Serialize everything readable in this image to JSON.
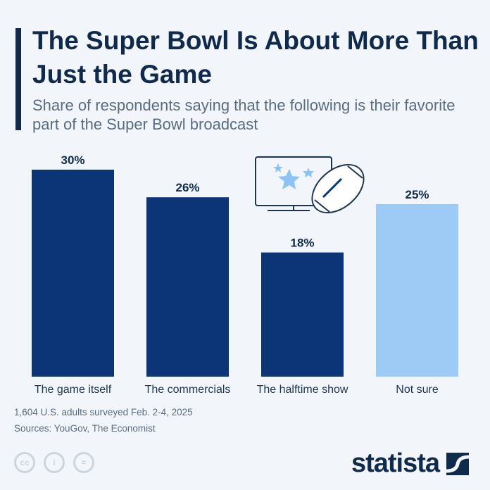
{
  "title": "The Super Bowl Is About More Than Just the Game",
  "subtitle": "Share of respondents saying that the following is their favorite part of the Super Bowl broadcast",
  "chart_data": {
    "type": "bar",
    "categories": [
      "The game itself",
      "The commercials",
      "The halftime show",
      "Not sure"
    ],
    "values": [
      30,
      26,
      18,
      25
    ],
    "data_labels": [
      "30%",
      "26%",
      "18%",
      "25%"
    ],
    "colors": [
      "#0b3577",
      "#0b3577",
      "#0b3577",
      "#9ecbf6"
    ],
    "ylim": [
      0,
      30
    ],
    "grid": false
  },
  "footer": {
    "note": "1,604 U.S. adults surveyed Feb. 2-4, 2025",
    "sources": "Sources: YouGov, The Economist",
    "logo": "statista",
    "license_icons": [
      "cc-icon",
      "by-icon",
      "nd-icon"
    ]
  },
  "illustration": [
    "tv-icon",
    "stars-icon",
    "football-icon"
  ]
}
